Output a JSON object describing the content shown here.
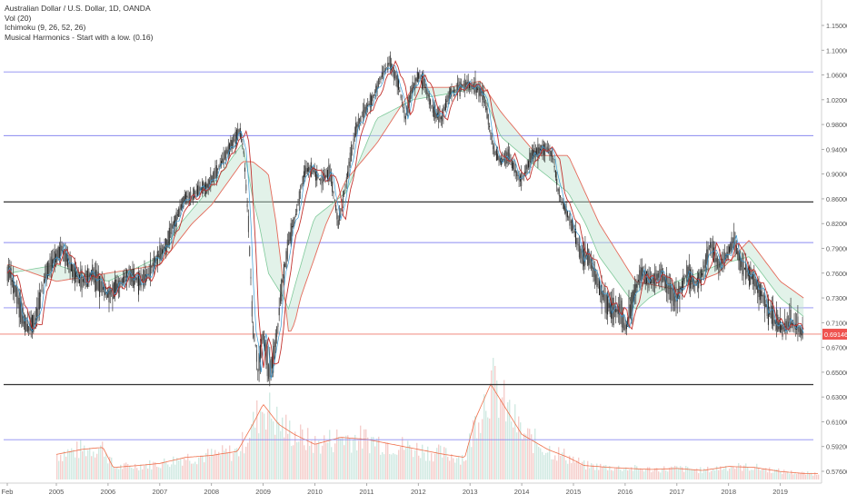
{
  "chart_data": {
    "type": "candlestick",
    "title": "Australian Dollar / U.S. Dollar, 1D, OANDA",
    "indicators": [
      "Vol (20)",
      "Ichimoku (9, 26, 52, 26)",
      "Musical Harmonics - Start with a low. (0.16)"
    ],
    "x_ticks": [
      "Feb",
      "2005",
      "2006",
      "2007",
      "2008",
      "2009",
      "2010",
      "2011",
      "2012",
      "2013",
      "2014",
      "2015",
      "2016",
      "2017",
      "2018",
      "2019"
    ],
    "y_ticks": [
      "1.15000",
      "1.10000",
      "1.06000",
      "1.02000",
      "0.98000",
      "0.94000",
      "0.90000",
      "0.86000",
      "0.82000",
      "0.79000",
      "0.76000",
      "0.73000",
      "0.71000",
      "0.67000",
      "0.65000",
      "0.63000",
      "0.61000",
      "0.59200",
      "0.57600"
    ],
    "last_price": "0.69146",
    "last_price_value": 0.69146,
    "harmonic_levels": [
      {
        "value": 1.065,
        "color": "#8a8af0"
      },
      {
        "value": 0.962,
        "color": "#8a8af0"
      },
      {
        "value": 0.855,
        "color": "#333333"
      },
      {
        "value": 0.797,
        "color": "#8a8af0"
      },
      {
        "value": 0.722,
        "color": "#8a8af0"
      },
      {
        "value": 0.64,
        "color": "#333333"
      },
      {
        "value": 0.597,
        "color": "#8a8af0"
      }
    ],
    "price_path": [
      [
        2004.1,
        0.76
      ],
      [
        2004.3,
        0.72
      ],
      [
        2004.45,
        0.7
      ],
      [
        2004.6,
        0.71
      ],
      [
        2004.8,
        0.76
      ],
      [
        2004.9,
        0.77
      ],
      [
        2005.1,
        0.79
      ],
      [
        2005.3,
        0.765
      ],
      [
        2005.5,
        0.75
      ],
      [
        2005.7,
        0.76
      ],
      [
        2005.85,
        0.745
      ],
      [
        2006.0,
        0.735
      ],
      [
        2006.2,
        0.745
      ],
      [
        2006.4,
        0.76
      ],
      [
        2006.6,
        0.75
      ],
      [
        2006.75,
        0.755
      ],
      [
        2006.9,
        0.775
      ],
      [
        2007.1,
        0.79
      ],
      [
        2007.3,
        0.825
      ],
      [
        2007.5,
        0.865
      ],
      [
        2007.6,
        0.86
      ],
      [
        2007.75,
        0.875
      ],
      [
        2007.9,
        0.88
      ],
      [
        2008.0,
        0.89
      ],
      [
        2008.2,
        0.92
      ],
      [
        2008.4,
        0.95
      ],
      [
        2008.55,
        0.97
      ],
      [
        2008.62,
        0.94
      ],
      [
        2008.7,
        0.84
      ],
      [
        2008.8,
        0.7
      ],
      [
        2008.9,
        0.65
      ],
      [
        2009.0,
        0.69
      ],
      [
        2009.1,
        0.65
      ],
      [
        2009.2,
        0.66
      ],
      [
        2009.35,
        0.74
      ],
      [
        2009.5,
        0.8
      ],
      [
        2009.65,
        0.84
      ],
      [
        2009.8,
        0.905
      ],
      [
        2009.95,
        0.91
      ],
      [
        2010.1,
        0.89
      ],
      [
        2010.3,
        0.9
      ],
      [
        2010.4,
        0.85
      ],
      [
        2010.45,
        0.82
      ],
      [
        2010.6,
        0.885
      ],
      [
        2010.8,
        0.975
      ],
      [
        2010.95,
        1.0
      ],
      [
        2011.1,
        1.02
      ],
      [
        2011.3,
        1.06
      ],
      [
        2011.45,
        1.08
      ],
      [
        2011.6,
        1.05
      ],
      [
        2011.75,
        0.99
      ],
      [
        2011.85,
        1.03
      ],
      [
        2012.0,
        1.06
      ],
      [
        2012.1,
        1.05
      ],
      [
        2012.3,
        1.0
      ],
      [
        2012.45,
        0.99
      ],
      [
        2012.6,
        1.03
      ],
      [
        2012.8,
        1.04
      ],
      [
        2012.95,
        1.045
      ],
      [
        2013.1,
        1.04
      ],
      [
        2013.25,
        1.03
      ],
      [
        2013.35,
        0.99
      ],
      [
        2013.45,
        0.94
      ],
      [
        2013.6,
        0.92
      ],
      [
        2013.75,
        0.93
      ],
      [
        2013.9,
        0.9
      ],
      [
        2014.0,
        0.89
      ],
      [
        2014.2,
        0.93
      ],
      [
        2014.35,
        0.94
      ],
      [
        2014.5,
        0.94
      ],
      [
        2014.6,
        0.93
      ],
      [
        2014.7,
        0.875
      ],
      [
        2014.85,
        0.84
      ],
      [
        2015.0,
        0.815
      ],
      [
        2015.15,
        0.78
      ],
      [
        2015.3,
        0.78
      ],
      [
        2015.45,
        0.75
      ],
      [
        2015.6,
        0.73
      ],
      [
        2015.75,
        0.72
      ],
      [
        2015.9,
        0.72
      ],
      [
        2016.0,
        0.7
      ],
      [
        2016.15,
        0.73
      ],
      [
        2016.3,
        0.76
      ],
      [
        2016.5,
        0.75
      ],
      [
        2016.7,
        0.76
      ],
      [
        2016.85,
        0.74
      ],
      [
        2017.0,
        0.73
      ],
      [
        2017.2,
        0.76
      ],
      [
        2017.35,
        0.745
      ],
      [
        2017.5,
        0.76
      ],
      [
        2017.65,
        0.795
      ],
      [
        2017.8,
        0.77
      ],
      [
        2017.95,
        0.78
      ],
      [
        2018.1,
        0.8
      ],
      [
        2018.25,
        0.77
      ],
      [
        2018.45,
        0.755
      ],
      [
        2018.6,
        0.74
      ],
      [
        2018.75,
        0.72
      ],
      [
        2018.9,
        0.71
      ],
      [
        2019.05,
        0.7
      ],
      [
        2019.2,
        0.71
      ],
      [
        2019.35,
        0.7
      ],
      [
        2019.45,
        0.69146
      ]
    ],
    "cloud_span_a": [
      [
        2004.1,
        0.76
      ],
      [
        2005.0,
        0.77
      ],
      [
        2006.0,
        0.75
      ],
      [
        2007.0,
        0.78
      ],
      [
        2008.0,
        0.88
      ],
      [
        2008.6,
        0.95
      ],
      [
        2008.8,
        0.86
      ],
      [
        2009.1,
        0.76
      ],
      [
        2009.5,
        0.72
      ],
      [
        2010.0,
        0.83
      ],
      [
        2010.6,
        0.87
      ],
      [
        2011.2,
        0.99
      ],
      [
        2011.9,
        1.02
      ],
      [
        2012.6,
        1.03
      ],
      [
        2013.2,
        1.04
      ],
      [
        2013.6,
        0.96
      ],
      [
        2014.3,
        0.91
      ],
      [
        2014.9,
        0.87
      ],
      [
        2015.5,
        0.78
      ],
      [
        2016.2,
        0.72
      ],
      [
        2017.0,
        0.75
      ],
      [
        2017.8,
        0.77
      ],
      [
        2018.4,
        0.78
      ],
      [
        2019.0,
        0.73
      ],
      [
        2019.45,
        0.715
      ]
    ],
    "cloud_span_b": [
      [
        2004.1,
        0.77
      ],
      [
        2005.0,
        0.75
      ],
      [
        2006.0,
        0.76
      ],
      [
        2007.0,
        0.77
      ],
      [
        2008.0,
        0.85
      ],
      [
        2008.6,
        0.92
      ],
      [
        2008.8,
        0.92
      ],
      [
        2009.1,
        0.9
      ],
      [
        2009.5,
        0.69
      ],
      [
        2010.0,
        0.78
      ],
      [
        2010.6,
        0.89
      ],
      [
        2011.2,
        0.95
      ],
      [
        2011.9,
        1.04
      ],
      [
        2012.6,
        1.04
      ],
      [
        2013.2,
        1.05
      ],
      [
        2013.6,
        1.0
      ],
      [
        2014.3,
        0.93
      ],
      [
        2014.9,
        0.93
      ],
      [
        2015.5,
        0.82
      ],
      [
        2016.2,
        0.75
      ],
      [
        2017.0,
        0.74
      ],
      [
        2017.8,
        0.76
      ],
      [
        2018.4,
        0.8
      ],
      [
        2019.0,
        0.75
      ],
      [
        2019.45,
        0.73
      ]
    ],
    "volume_profile": [
      [
        2004.0,
        0
      ],
      [
        2004.98,
        0
      ],
      [
        2005.0,
        0.25
      ],
      [
        2005.5,
        0.3
      ],
      [
        2005.9,
        0.32
      ],
      [
        2006.1,
        0.12
      ],
      [
        2006.6,
        0.14
      ],
      [
        2007.0,
        0.16
      ],
      [
        2007.5,
        0.22
      ],
      [
        2008.0,
        0.24
      ],
      [
        2008.5,
        0.28
      ],
      [
        2008.8,
        0.55
      ],
      [
        2009.0,
        0.75
      ],
      [
        2009.3,
        0.55
      ],
      [
        2009.6,
        0.45
      ],
      [
        2010.0,
        0.35
      ],
      [
        2010.5,
        0.42
      ],
      [
        2011.0,
        0.4
      ],
      [
        2011.6,
        0.34
      ],
      [
        2012.0,
        0.3
      ],
      [
        2012.5,
        0.25
      ],
      [
        2012.9,
        0.22
      ],
      [
        2013.1,
        0.6
      ],
      [
        2013.4,
        0.95
      ],
      [
        2013.7,
        0.7
      ],
      [
        2014.0,
        0.45
      ],
      [
        2014.5,
        0.3
      ],
      [
        2014.9,
        0.22
      ],
      [
        2015.2,
        0.14
      ],
      [
        2015.7,
        0.12
      ],
      [
        2016.5,
        0.1
      ],
      [
        2017.0,
        0.11
      ],
      [
        2017.5,
        0.09
      ],
      [
        2018.0,
        0.13
      ],
      [
        2018.5,
        0.12
      ],
      [
        2019.0,
        0.08
      ],
      [
        2019.45,
        0.06
      ]
    ]
  }
}
